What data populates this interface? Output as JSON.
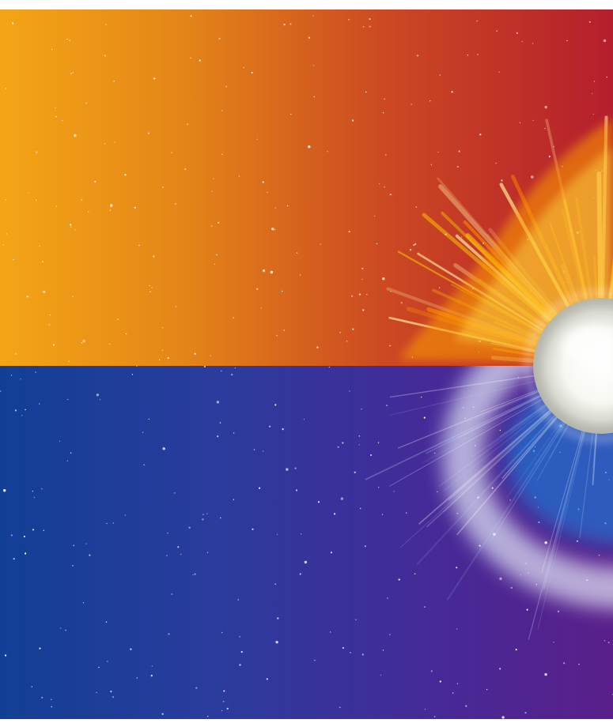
{
  "scene": {
    "description_free": true,
    "colors": {
      "top_left": "#f4a516",
      "top_mid": "#cc4a22",
      "top_right": "#b51e2c",
      "bottom_left": "#123f96",
      "bottom_mid": "#452a98",
      "bottom_right": "#5a1f8a",
      "flare_core": "#ffd400",
      "flare_outer": "#ff7a00",
      "nova_blue": "#0a8ce6",
      "nova_ring": "#dbe9ff",
      "star_core": "#ffffff"
    }
  }
}
